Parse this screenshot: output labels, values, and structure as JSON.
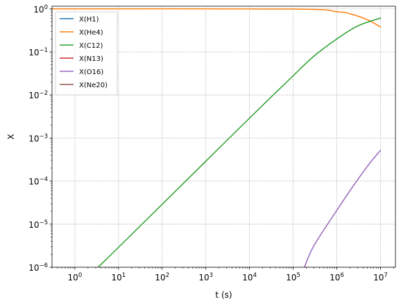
{
  "chart_data": {
    "type": "line",
    "title": "",
    "xlabel": "t (s)",
    "ylabel": "X",
    "xscale": "log",
    "yscale": "log",
    "xlim": [
      0.3,
      22000000.0
    ],
    "ylim": [
      1e-06,
      1.15
    ],
    "grid": true,
    "legend_position": "top-left",
    "x_ticks": [
      {
        "value": 1,
        "mant": "10",
        "exp": "0"
      },
      {
        "value": 10,
        "mant": "10",
        "exp": "1"
      },
      {
        "value": 100,
        "mant": "10",
        "exp": "2"
      },
      {
        "value": 1000,
        "mant": "10",
        "exp": "3"
      },
      {
        "value": 10000,
        "mant": "10",
        "exp": "4"
      },
      {
        "value": 100000,
        "mant": "10",
        "exp": "5"
      },
      {
        "value": 1000000,
        "mant": "10",
        "exp": "6"
      },
      {
        "value": 10000000,
        "mant": "10",
        "exp": "7"
      }
    ],
    "y_ticks": [
      {
        "value": 1e-06,
        "mant": "10",
        "exp": "−6"
      },
      {
        "value": 1e-05,
        "mant": "10",
        "exp": "−5"
      },
      {
        "value": 0.0001,
        "mant": "10",
        "exp": "−4"
      },
      {
        "value": 0.001,
        "mant": "10",
        "exp": "−3"
      },
      {
        "value": 0.01,
        "mant": "10",
        "exp": "−2"
      },
      {
        "value": 0.1,
        "mant": "10",
        "exp": "−1"
      },
      {
        "value": 1,
        "mant": "10",
        "exp": "0"
      }
    ],
    "series": [
      {
        "name": "X(H1)",
        "color": "#1f77b4",
        "points": []
      },
      {
        "name": "X(He4)",
        "color": "#ff7f0e",
        "points": [
          [
            0.3,
            1.0
          ],
          [
            100000,
            0.99
          ],
          [
            1000000,
            0.86
          ],
          [
            2000000,
            0.77
          ],
          [
            5000000,
            0.56
          ],
          [
            10000000,
            0.38
          ]
        ]
      },
      {
        "name": "X(C12)",
        "color": "#2ca02c",
        "points": [
          [
            3.4,
            1e-06
          ],
          [
            10,
            2.9e-06
          ],
          [
            100,
            2.9e-05
          ],
          [
            1000,
            0.00029
          ],
          [
            10000,
            0.0029
          ],
          [
            100000,
            0.028
          ],
          [
            300000,
            0.08
          ],
          [
            1000000,
            0.2
          ],
          [
            3000000,
            0.4
          ],
          [
            10000000,
            0.61
          ]
        ]
      },
      {
        "name": "X(N13)",
        "color": "#d62728",
        "points": []
      },
      {
        "name": "X(O16)",
        "color": "#9467bd",
        "points": [
          [
            180000,
            1e-06
          ],
          [
            300000,
            3.2e-06
          ],
          [
            1000000,
            2.1e-05
          ],
          [
            2000000,
            6e-05
          ],
          [
            5000000,
            0.00022
          ],
          [
            10000000,
            0.00052
          ]
        ]
      },
      {
        "name": "X(Ne20)",
        "color": "#8c564b",
        "points": []
      }
    ]
  }
}
